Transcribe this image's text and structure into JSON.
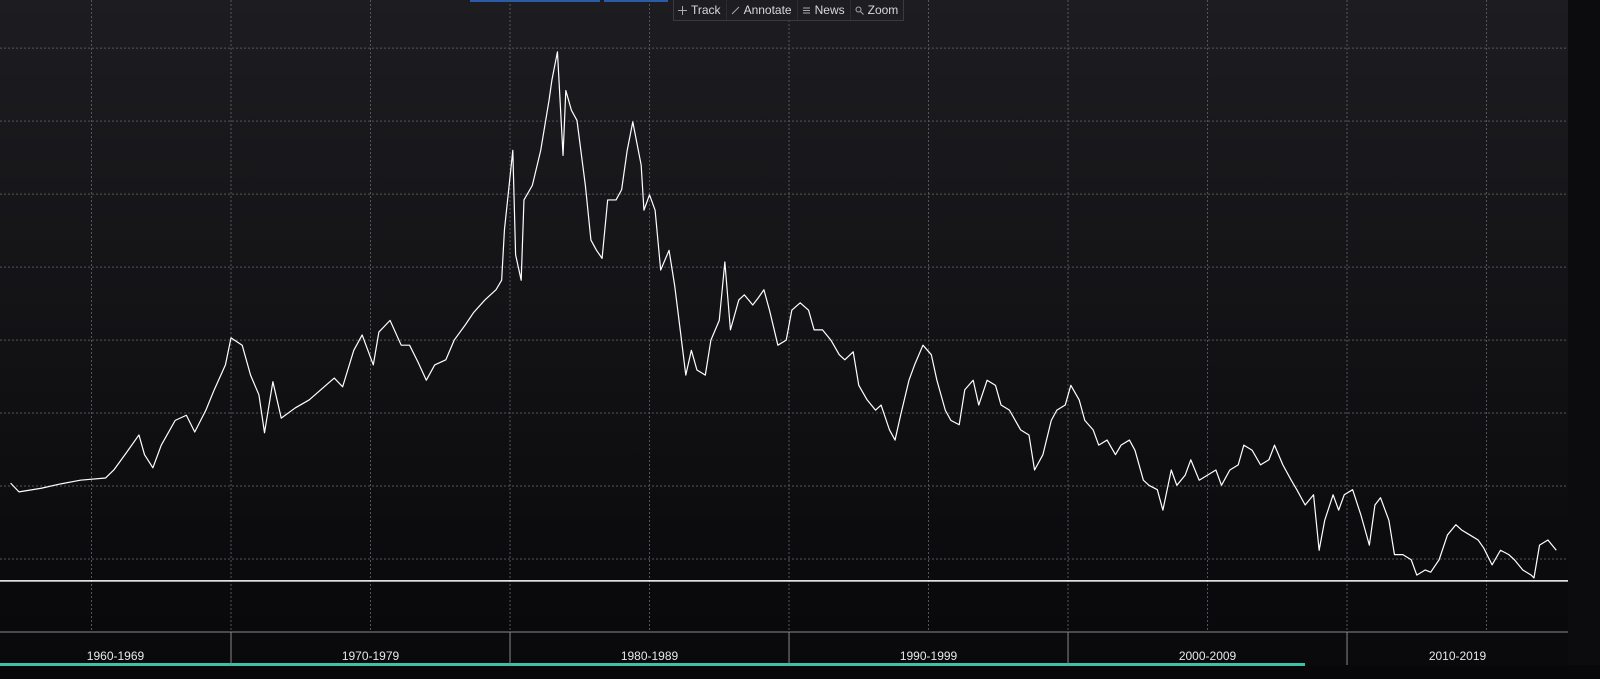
{
  "toolbar": [
    "Track",
    "Annotate",
    "News",
    "Zoom"
  ],
  "chart_data": {
    "type": "line",
    "color": "#ffffff",
    "x": [
      1962.1,
      1962.4,
      1963.2,
      1963.9,
      1964.6,
      1965.5,
      1965.8,
      1966.2,
      1966.7,
      1966.9,
      1967.2,
      1967.5,
      1968.0,
      1968.4,
      1968.7,
      1969.1,
      1969.4,
      1969.8,
      1970.0,
      1970.4,
      1970.7,
      1971.0,
      1971.2,
      1971.5,
      1971.8,
      1972.3,
      1972.8,
      1973.4,
      1973.7,
      1974.0,
      1974.4,
      1974.7,
      1975.1,
      1975.3,
      1975.7,
      1976.1,
      1976.4,
      1976.7,
      1977.0,
      1977.3,
      1977.7,
      1978.0,
      1978.4,
      1978.7,
      1979.1,
      1979.5,
      1979.7,
      1979.8,
      1980.1,
      1980.2,
      1980.4,
      1980.5,
      1980.8,
      1981.1,
      1981.4,
      1981.5,
      1981.7,
      1981.9,
      1982.0,
      1982.2,
      1982.4,
      1982.7,
      1982.9,
      1983.1,
      1983.3,
      1983.5,
      1983.8,
      1984.0,
      1984.2,
      1984.4,
      1984.7,
      1984.8,
      1985.0,
      1985.2,
      1985.4,
      1985.7,
      1985.9,
      1986.1,
      1986.3,
      1986.5,
      1986.7,
      1987.0,
      1987.2,
      1987.5,
      1987.7,
      1987.9,
      1988.2,
      1988.4,
      1988.7,
      1988.9,
      1989.1,
      1989.3,
      1989.6,
      1989.9,
      1990.1,
      1990.4,
      1990.7,
      1990.9,
      1991.2,
      1991.5,
      1991.8,
      1992.0,
      1992.3,
      1992.5,
      1992.8,
      1993.1,
      1993.3,
      1993.6,
      1993.8,
      1994.0,
      1994.3,
      1994.5,
      1994.8,
      1995.1,
      1995.3,
      1995.6,
      1995.8,
      1996.1,
      1996.3,
      1996.6,
      1996.8,
      1997.1,
      1997.4,
      1997.6,
      1997.9,
      1998.3,
      1998.6,
      1998.8,
      1999.1,
      1999.4,
      1999.6,
      1999.9,
      2000.1,
      2000.4,
      2000.6,
      2000.9,
      2001.1,
      2001.4,
      2001.7,
      2001.9,
      2002.2,
      2002.4,
      2002.7,
      2002.9,
      2003.2,
      2003.4,
      2003.7,
      2003.9,
      2004.2,
      2004.4,
      2004.7,
      2005.0,
      2005.3,
      2005.5,
      2005.8,
      2006.1,
      2006.3,
      2006.6,
      2006.9,
      2007.2,
      2007.4,
      2007.7,
      2008.0,
      2008.2,
      2008.5,
      2008.8,
      2009.0,
      2009.2,
      2009.5,
      2009.7,
      2009.9,
      2010.2,
      2010.5,
      2010.8,
      2011.0,
      2011.2,
      2011.5,
      2011.7,
      2012.0,
      2012.3,
      2012.5,
      2012.8,
      2013.0,
      2013.3,
      2013.6,
      2013.9,
      2014.1,
      2014.4,
      2014.7,
      2014.9,
      2015.2,
      2015.5,
      2015.8,
      2016.0,
      2016.3,
      2016.6,
      2016.7,
      2016.9,
      2017.2,
      2017.5
    ],
    "values": [
      2.04,
      1.92,
      1.97,
      2.03,
      2.08,
      2.11,
      2.22,
      2.43,
      2.7,
      2.43,
      2.25,
      2.56,
      2.9,
      2.97,
      2.74,
      3.04,
      3.32,
      3.66,
      4.03,
      3.93,
      3.52,
      3.25,
      2.73,
      3.43,
      2.93,
      3.07,
      3.18,
      3.38,
      3.48,
      3.36,
      3.86,
      4.07,
      3.66,
      4.11,
      4.27,
      3.93,
      3.93,
      3.7,
      3.45,
      3.66,
      3.73,
      4.0,
      4.21,
      4.38,
      4.55,
      4.69,
      4.82,
      5.51,
      6.6,
      5.17,
      4.82,
      5.92,
      6.12,
      6.6,
      7.29,
      7.56,
      7.95,
      6.53,
      7.42,
      7.15,
      7.01,
      6.12,
      5.37,
      5.23,
      5.12,
      5.92,
      5.92,
      6.06,
      6.6,
      6.99,
      6.4,
      5.78,
      5.99,
      5.78,
      4.96,
      5.23,
      4.75,
      4.14,
      3.52,
      3.86,
      3.59,
      3.52,
      4.0,
      4.27,
      5.07,
      4.14,
      4.55,
      4.62,
      4.48,
      4.58,
      4.69,
      4.41,
      3.93,
      4.0,
      4.41,
      4.51,
      4.41,
      4.14,
      4.14,
      4.0,
      3.8,
      3.73,
      3.84,
      3.38,
      3.18,
      3.04,
      3.11,
      2.77,
      2.63,
      2.97,
      3.45,
      3.66,
      3.93,
      3.8,
      3.45,
      3.04,
      2.9,
      2.84,
      3.32,
      3.45,
      3.11,
      3.45,
      3.38,
      3.11,
      3.04,
      2.77,
      2.7,
      2.22,
      2.43,
      2.9,
      3.04,
      3.11,
      3.38,
      3.18,
      2.9,
      2.77,
      2.56,
      2.63,
      2.43,
      2.56,
      2.63,
      2.49,
      2.08,
      2.01,
      1.95,
      1.67,
      2.22,
      2.01,
      2.15,
      2.36,
      2.08,
      2.15,
      2.22,
      2.01,
      2.22,
      2.29,
      2.56,
      2.49,
      2.29,
      2.36,
      2.56,
      2.29,
      2.08,
      1.95,
      1.74,
      1.88,
      1.12,
      1.53,
      1.88,
      1.67,
      1.88,
      1.95,
      1.6,
      1.19,
      1.74,
      1.84,
      1.53,
      1.06,
      1.06,
      0.99,
      0.78,
      0.85,
      0.82,
      0.99,
      1.33,
      1.47,
      1.4,
      1.33,
      1.26,
      1.15,
      0.92,
      1.12,
      1.06,
      0.99,
      0.85,
      0.78,
      0.74,
      1.19,
      1.26,
      1.12
    ],
    "xlim": [
      1961.72,
      2017.92
    ],
    "ylim": [
      0,
      8.66
    ],
    "xgrid": [
      1965,
      1970,
      1975,
      1980,
      1985,
      1990,
      1995,
      2000,
      2005,
      2010,
      2015
    ],
    "ygrid": [
      1,
      2,
      3,
      4,
      5,
      6,
      7,
      8
    ],
    "reference_line": 0.7,
    "x_bands": [
      {
        "label": "1960-1969",
        "from": 1960,
        "to": 1970
      },
      {
        "label": "1970-1979",
        "from": 1970,
        "to": 1980
      },
      {
        "label": "1980-1989",
        "from": 1980,
        "to": 1990
      },
      {
        "label": "1990-1999",
        "from": 1990,
        "to": 2000
      },
      {
        "label": "2000-2009",
        "from": 2000,
        "to": 2010
      },
      {
        "label": "2010-2019",
        "from": 2010,
        "to": 2020
      }
    ]
  }
}
